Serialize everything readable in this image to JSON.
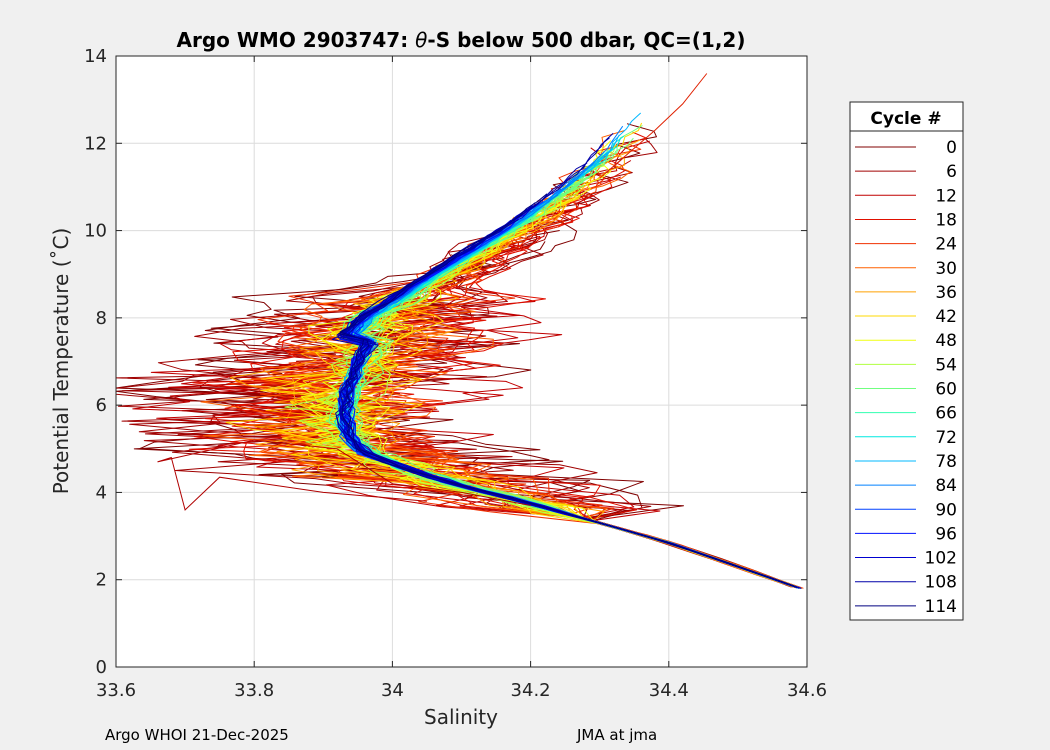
{
  "chart_data": {
    "type": "line",
    "title_prefix": "Argo WMO 2903747: ",
    "title_symbol": "θ",
    "title_suffix": "-S below 500 dbar,  QC=(1,2)",
    "xlabel": "Salinity",
    "ylabel": "Potential Temperature (˚C)",
    "xlim": [
      33.6,
      34.6
    ],
    "ylim": [
      0,
      14
    ],
    "xticks": [
      33.6,
      33.8,
      34,
      34.2,
      34.4,
      34.6
    ],
    "xtick_labels": [
      "33.6",
      "33.8",
      "34",
      "34.2",
      "34.4",
      "34.6"
    ],
    "yticks": [
      0,
      2,
      4,
      6,
      8,
      10,
      12,
      14
    ],
    "ytick_labels": [
      "0",
      "2",
      "4",
      "6",
      "8",
      "10",
      "12",
      "14"
    ],
    "grid": true,
    "legend": {
      "title": "Cycle #",
      "position": "right",
      "entries": [
        {
          "label": "0",
          "color": "#800000"
        },
        {
          "label": "6",
          "color": "#a00000"
        },
        {
          "label": "12",
          "color": "#c00000"
        },
        {
          "label": "18",
          "color": "#e01000"
        },
        {
          "label": "24",
          "color": "#f03000"
        },
        {
          "label": "30",
          "color": "#ff6000"
        },
        {
          "label": "36",
          "color": "#ffa000"
        },
        {
          "label": "42",
          "color": "#ffd800"
        },
        {
          "label": "48",
          "color": "#f0ff10"
        },
        {
          "label": "54",
          "color": "#b0ff40"
        },
        {
          "label": "60",
          "color": "#70ff80"
        },
        {
          "label": "66",
          "color": "#30ffb0"
        },
        {
          "label": "72",
          "color": "#00e8e0"
        },
        {
          "label": "78",
          "color": "#00b8ff"
        },
        {
          "label": "84",
          "color": "#0080ff"
        },
        {
          "label": "90",
          "color": "#0040ff"
        },
        {
          "label": "96",
          "color": "#0010ff"
        },
        {
          "label": "102",
          "color": "#0000d0"
        },
        {
          "label": "108",
          "color": "#0000a8"
        },
        {
          "label": "114",
          "color": "#000080"
        }
      ]
    },
    "series_note": "theta-S profiles for each cycle colored by cycle number",
    "base_profile": {
      "salinity": [
        34.59,
        34.5,
        34.4,
        34.3,
        34.2,
        34.1,
        34.02,
        33.96,
        33.935,
        33.93,
        33.935,
        33.95,
        33.97,
        34.0,
        34.05,
        34.1,
        34.16,
        34.22,
        34.28,
        34.34,
        34.39
      ],
      "theta": [
        1.8,
        2.3,
        2.85,
        3.3,
        3.75,
        4.15,
        4.55,
        4.9,
        5.3,
        5.7,
        6.3,
        6.9,
        7.5,
        8.0,
        8.5,
        9.0,
        9.6,
        10.2,
        10.9,
        11.7,
        12.6
      ]
    },
    "extreme_points": {
      "min_salinity_cycle0": 33.66,
      "max_salinity": 34.59,
      "max_theta": 13.6,
      "min_theta": 1.75
    }
  },
  "footer": {
    "left": "Argo WHOI 21-Dec-2025",
    "right": "JMA at jma"
  }
}
